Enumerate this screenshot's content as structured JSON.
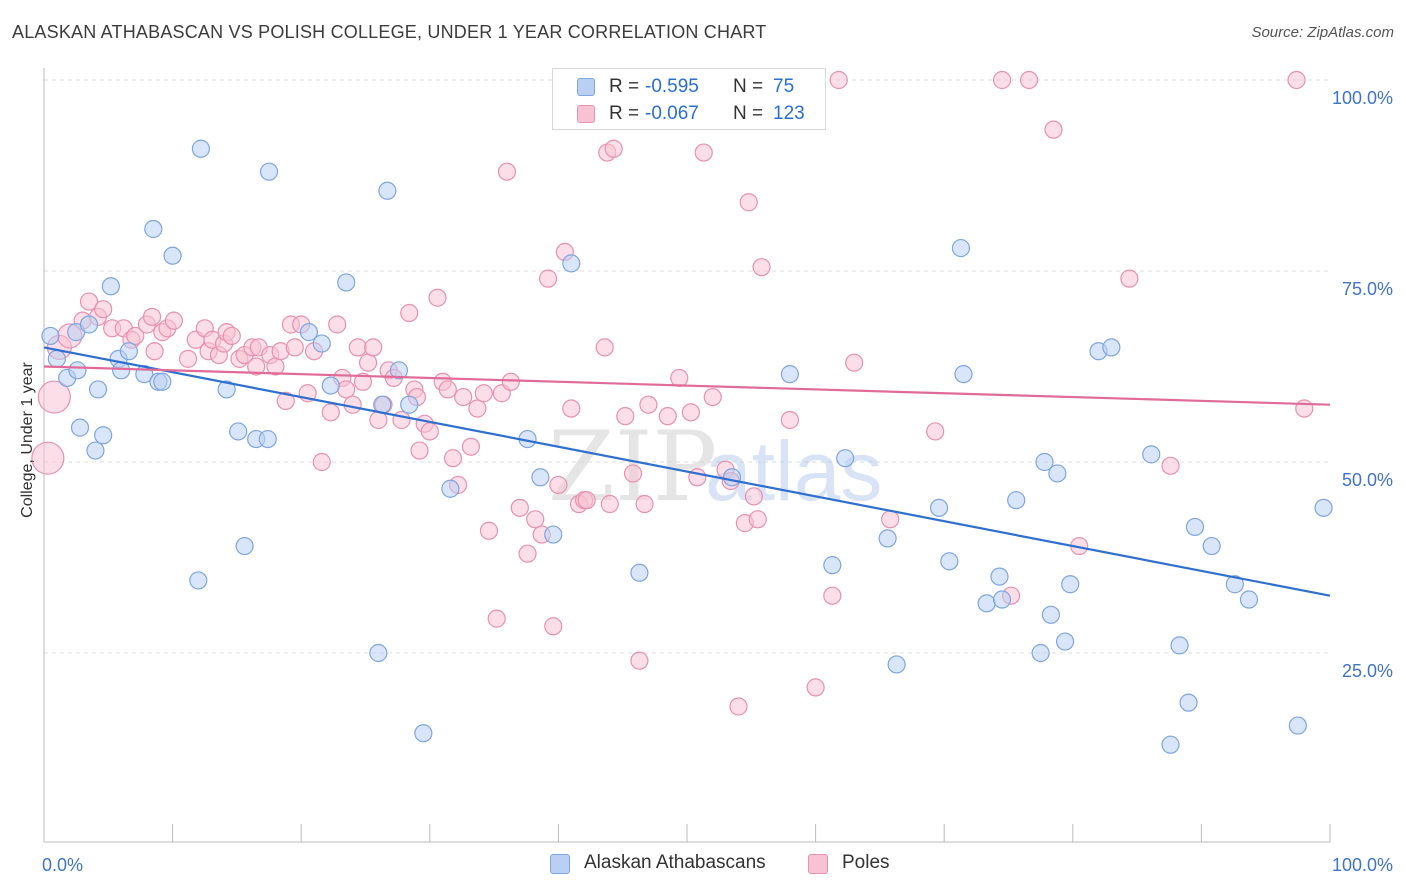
{
  "title": "ALASKAN ATHABASCAN VS POLISH COLLEGE, UNDER 1 YEAR CORRELATION CHART",
  "source": "Source: ZipAtlas.com",
  "watermark": {
    "zip": "ZIP",
    "atlas": "atlas"
  },
  "legend": {
    "series1": {
      "r_label": "R =",
      "r_value": "-0.595",
      "n_label": "N =",
      "n_value": "75"
    },
    "series2": {
      "r_label": "R =",
      "r_value": "-0.067",
      "n_label": "N =",
      "n_value": "123"
    }
  },
  "colors": {
    "blue_fill": "#b9d0f3",
    "blue_stroke": "#7fa6e0",
    "blue_line": "#2e6fd0",
    "pink_fill": "#f7c2d4",
    "pink_stroke": "#e891b0",
    "pink_line": "#e06b98",
    "grid": "#dddddd",
    "tick_label": "#3f74c9"
  },
  "chart_data": {
    "type": "scatter",
    "title": "ALASKAN ATHABASCAN VS POLISH COLLEGE, UNDER 1 YEAR CORRELATION CHART",
    "xlabel": "",
    "ylabel": "College, Under 1 year",
    "xlim": [
      0,
      100
    ],
    "ylim": [
      5,
      102
    ],
    "x_tick_labels": [
      {
        "value": 0,
        "label": "0.0%"
      },
      {
        "value": 100,
        "label": "100.0%"
      }
    ],
    "y_tick_labels": [
      {
        "value": 100,
        "label": "100.0%"
      },
      {
        "value": 75,
        "label": "75.0%"
      },
      {
        "value": 50,
        "label": "50.0%"
      },
      {
        "value": 25,
        "label": "25.0%"
      }
    ],
    "grid": "horizontal dashed",
    "legend_position": "top-center",
    "series": [
      {
        "name": "Alaskan Athabascans",
        "trend": {
          "x": [
            0,
            100
          ],
          "y": [
            65,
            32.5
          ]
        },
        "points": [
          [
            0.5,
            66.5
          ],
          [
            1,
            63.5
          ],
          [
            1.8,
            61
          ],
          [
            2.5,
            67
          ],
          [
            2.6,
            62
          ],
          [
            2.8,
            54.5
          ],
          [
            3.5,
            68
          ],
          [
            4,
            51.5
          ],
          [
            4.2,
            59.5
          ],
          [
            4.6,
            53.5
          ],
          [
            5.2,
            73
          ],
          [
            5.8,
            63.5
          ],
          [
            6,
            62
          ],
          [
            6.6,
            64.5
          ],
          [
            7.8,
            61.5
          ],
          [
            8.5,
            80.5
          ],
          [
            8.9,
            60.5
          ],
          [
            9.2,
            60.5
          ],
          [
            10,
            77
          ],
          [
            12,
            34.5
          ],
          [
            12.2,
            91
          ],
          [
            14.2,
            59.5
          ],
          [
            15.1,
            54
          ],
          [
            15.6,
            39
          ],
          [
            16.5,
            53
          ],
          [
            17.4,
            53
          ],
          [
            17.5,
            88
          ],
          [
            20.6,
            67
          ],
          [
            21.6,
            65.5
          ],
          [
            22.3,
            60
          ],
          [
            23.5,
            73.5
          ],
          [
            26,
            25
          ],
          [
            26.3,
            57.5
          ],
          [
            26.7,
            85.5
          ],
          [
            27.6,
            62
          ],
          [
            28.4,
            57.5
          ],
          [
            29.5,
            14.5
          ],
          [
            31.6,
            46.5
          ],
          [
            37.6,
            53
          ],
          [
            38.6,
            48
          ],
          [
            39.6,
            40.5
          ],
          [
            41,
            76
          ],
          [
            46.3,
            35.5
          ],
          [
            53.5,
            48
          ],
          [
            58,
            61.5
          ],
          [
            61.3,
            36.5
          ],
          [
            62.3,
            50.5
          ],
          [
            65.6,
            40
          ],
          [
            66.3,
            23.5
          ],
          [
            69.6,
            44
          ],
          [
            70.4,
            37
          ],
          [
            71.3,
            78
          ],
          [
            71.5,
            61.5
          ],
          [
            73.3,
            31.5
          ],
          [
            74.3,
            35
          ],
          [
            74.5,
            32
          ],
          [
            75.6,
            45
          ],
          [
            77.5,
            25
          ],
          [
            77.8,
            50
          ],
          [
            78.3,
            30
          ],
          [
            78.8,
            48.5
          ],
          [
            79.4,
            26.5
          ],
          [
            79.8,
            34
          ],
          [
            82,
            64.5
          ],
          [
            83,
            65
          ],
          [
            86.1,
            51
          ],
          [
            87.6,
            13
          ],
          [
            88.3,
            26
          ],
          [
            89,
            18.5
          ],
          [
            89.5,
            41.5
          ],
          [
            90.8,
            39
          ],
          [
            92.6,
            34
          ],
          [
            93.7,
            32
          ],
          [
            97.5,
            15.5
          ],
          [
            99.5,
            44
          ]
        ]
      },
      {
        "name": "Poles",
        "trend": {
          "x": [
            0,
            100
          ],
          "y": [
            62.5,
            57.5
          ]
        },
        "points": [
          [
            0.3,
            50.5
          ],
          [
            0.8,
            58.5
          ],
          [
            1.2,
            65
          ],
          [
            2,
            66.5
          ],
          [
            3,
            68.5
          ],
          [
            3.5,
            71
          ],
          [
            4.2,
            69
          ],
          [
            4.6,
            70
          ],
          [
            5.3,
            67.5
          ],
          [
            6.2,
            67.5
          ],
          [
            6.8,
            66
          ],
          [
            7.1,
            66.5
          ],
          [
            8,
            68
          ],
          [
            8.4,
            69
          ],
          [
            8.6,
            64.5
          ],
          [
            9.2,
            67
          ],
          [
            9.6,
            67.5
          ],
          [
            10.1,
            68.5
          ],
          [
            11.2,
            63.5
          ],
          [
            11.8,
            66
          ],
          [
            12.5,
            67.5
          ],
          [
            12.8,
            64.5
          ],
          [
            13.1,
            66
          ],
          [
            13.6,
            64
          ],
          [
            14,
            65.5
          ],
          [
            14.2,
            67
          ],
          [
            14.6,
            66.5
          ],
          [
            15.2,
            63.5
          ],
          [
            15.6,
            64
          ],
          [
            16.2,
            65
          ],
          [
            16.5,
            62.5
          ],
          [
            16.7,
            65
          ],
          [
            17.6,
            64
          ],
          [
            18,
            62.5
          ],
          [
            18.4,
            64.5
          ],
          [
            18.8,
            58
          ],
          [
            19.2,
            68
          ],
          [
            19.5,
            65
          ],
          [
            20,
            68
          ],
          [
            20.5,
            59
          ],
          [
            21,
            64.5
          ],
          [
            21.6,
            50
          ],
          [
            22.3,
            56.5
          ],
          [
            22.8,
            68
          ],
          [
            23.2,
            61
          ],
          [
            23.5,
            59.5
          ],
          [
            24,
            57.5
          ],
          [
            24.4,
            65
          ],
          [
            24.8,
            60.5
          ],
          [
            25.2,
            63
          ],
          [
            25.6,
            65
          ],
          [
            26,
            55.5
          ],
          [
            26.4,
            57.5
          ],
          [
            26.8,
            62
          ],
          [
            27.2,
            61
          ],
          [
            27.8,
            55.5
          ],
          [
            28.4,
            69.5
          ],
          [
            28.8,
            59.5
          ],
          [
            29,
            58.5
          ],
          [
            29.2,
            51.5
          ],
          [
            29.6,
            55
          ],
          [
            30,
            54
          ],
          [
            30.6,
            71.5
          ],
          [
            31,
            60.5
          ],
          [
            31.4,
            59.5
          ],
          [
            31.8,
            50.5
          ],
          [
            32.2,
            47
          ],
          [
            32.6,
            58.5
          ],
          [
            33.2,
            52
          ],
          [
            33.7,
            57
          ],
          [
            34.2,
            59
          ],
          [
            34.6,
            41
          ],
          [
            35.2,
            29.5
          ],
          [
            35.6,
            59
          ],
          [
            36,
            88
          ],
          [
            36.3,
            60.5
          ],
          [
            37,
            44
          ],
          [
            37.6,
            38
          ],
          [
            38.2,
            42.5
          ],
          [
            38.7,
            40.5
          ],
          [
            39.2,
            74
          ],
          [
            39.6,
            28.5
          ],
          [
            40,
            47
          ],
          [
            40.5,
            77.5
          ],
          [
            41,
            57
          ],
          [
            41.6,
            44.5
          ],
          [
            42,
            45
          ],
          [
            42.2,
            45
          ],
          [
            43.6,
            65
          ],
          [
            43.8,
            90.5
          ],
          [
            44,
            44.5
          ],
          [
            44.3,
            91
          ],
          [
            45.2,
            56
          ],
          [
            45.8,
            48.5
          ],
          [
            46.3,
            24
          ],
          [
            46.7,
            44.5
          ],
          [
            47,
            57.5
          ],
          [
            48.5,
            56
          ],
          [
            49.4,
            61
          ],
          [
            50.3,
            56.5
          ],
          [
            50.8,
            48
          ],
          [
            51.3,
            90.5
          ],
          [
            52,
            58.5
          ],
          [
            53,
            49
          ],
          [
            53.4,
            47.5
          ],
          [
            54,
            18
          ],
          [
            54.5,
            42
          ],
          [
            54.8,
            84
          ],
          [
            55.2,
            45.5
          ],
          [
            55.5,
            42.5
          ],
          [
            55.8,
            75.5
          ],
          [
            58,
            55.5
          ],
          [
            60,
            20.5
          ],
          [
            61.3,
            32.5
          ],
          [
            61.8,
            100
          ],
          [
            63,
            63
          ],
          [
            65.8,
            42.5
          ],
          [
            69.3,
            54
          ],
          [
            74.5,
            100
          ],
          [
            75.2,
            32.5
          ],
          [
            76.6,
            100
          ],
          [
            78.5,
            93.5
          ],
          [
            80.5,
            39
          ],
          [
            84.4,
            74
          ],
          [
            87.6,
            49.5
          ],
          [
            97.4,
            100
          ],
          [
            98,
            57
          ]
        ]
      }
    ]
  },
  "axis": {
    "y_title": "College, Under 1 year",
    "x_min_label": "0.0%",
    "x_max_label": "100.0%"
  },
  "legend_bottom": {
    "series1": "Alaskan Athabascans",
    "series2": "Poles"
  }
}
